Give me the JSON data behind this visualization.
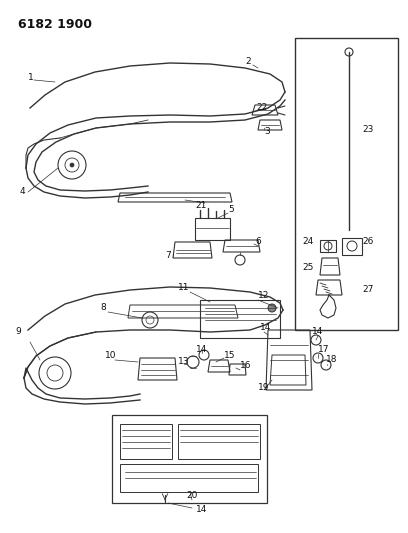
{
  "title": "6182 1900",
  "bg_color": "#ffffff",
  "line_color": "#333333",
  "text_color": "#111111",
  "title_fontsize": 9,
  "label_fontsize": 6.5,
  "fig_width": 4.08,
  "fig_height": 5.33,
  "fig_dpi": 100
}
